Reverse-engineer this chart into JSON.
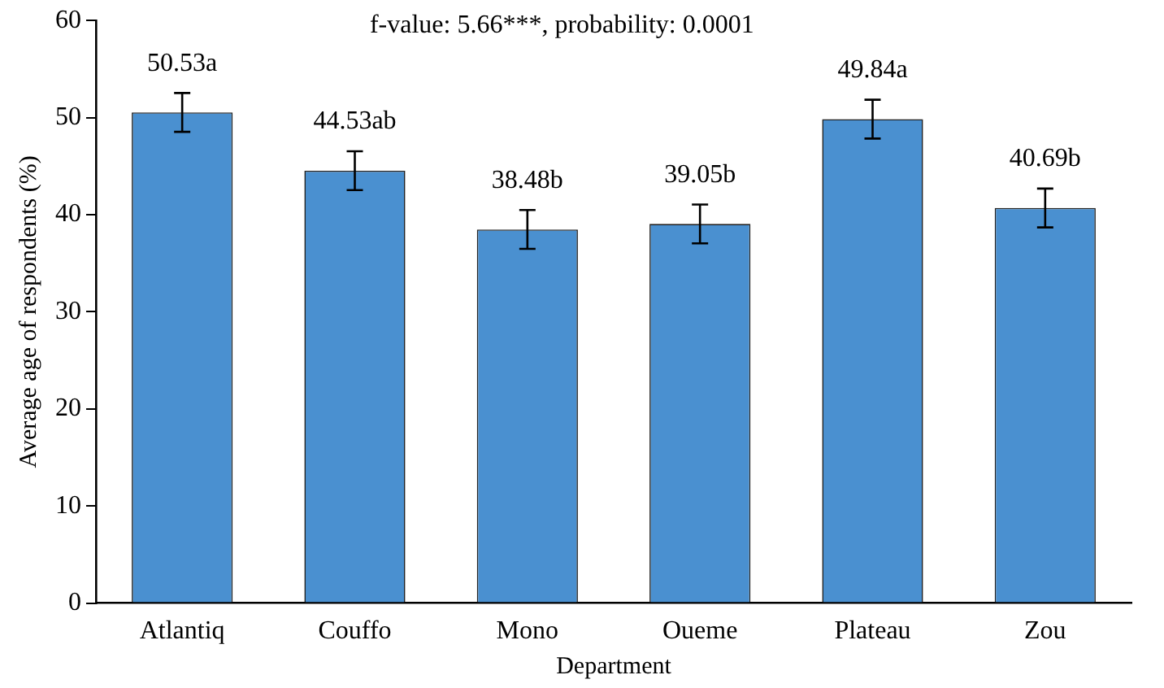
{
  "chart_data": {
    "type": "bar",
    "xlabel": "Department",
    "ylabel": "Average age of respondents (%)",
    "annotations": [
      "f-value: 5.66***, probability: 0.0001"
    ],
    "categories": [
      "Atlantiq",
      "Couffo",
      "Mono",
      "Oueme",
      "Plateau",
      "Zou"
    ],
    "values": [
      50.53,
      44.53,
      38.48,
      39.05,
      49.84,
      40.69
    ],
    "value_labels": [
      "50.53a",
      "44.53ab",
      "38.48b",
      "39.05b",
      "49.84a",
      "40.69b"
    ],
    "errors": [
      2,
      2,
      2,
      2,
      2,
      2
    ],
    "color": "#4a90d0",
    "ylim": [
      0,
      60
    ],
    "yticks": [
      0,
      10,
      20,
      30,
      40,
      50,
      60
    ],
    "grid": false,
    "legend": false
  }
}
